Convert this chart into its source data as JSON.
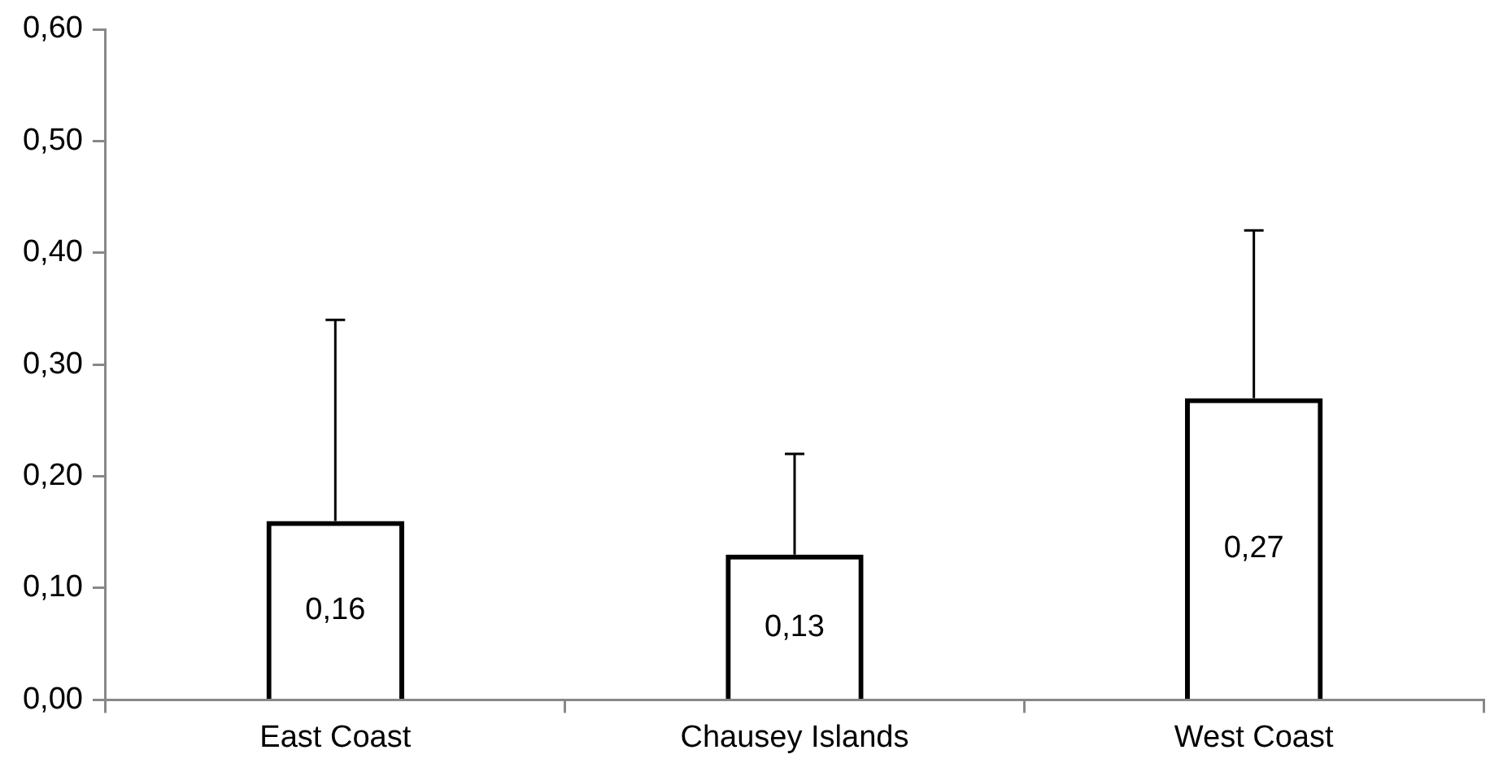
{
  "chart_data": {
    "type": "bar",
    "categories": [
      "East Coast",
      "Chausey Islands",
      "West Coast"
    ],
    "values": [
      0.16,
      0.13,
      0.27
    ],
    "color": "#000000",
    "errors": [
      [
        0.16,
        0.34
      ],
      [
        0.13,
        0.22
      ],
      [
        0.27,
        0.42
      ]
    ],
    "value_labels": [
      "0,16",
      "0,13",
      "0,27"
    ],
    "ylim": [
      0,
      0.6
    ],
    "yticks": [
      {
        "value": 0,
        "label": "0,00"
      },
      {
        "value": 0.1,
        "label": "0,10"
      },
      {
        "value": 0.2,
        "label": "0,20"
      },
      {
        "value": 0.3,
        "label": "0,30"
      },
      {
        "value": 0.4,
        "label": "0,40"
      },
      {
        "value": 0.5,
        "label": "0,50"
      },
      {
        "value": 0.6,
        "label": "0,60"
      }
    ],
    "grid": false,
    "legend": false
  }
}
